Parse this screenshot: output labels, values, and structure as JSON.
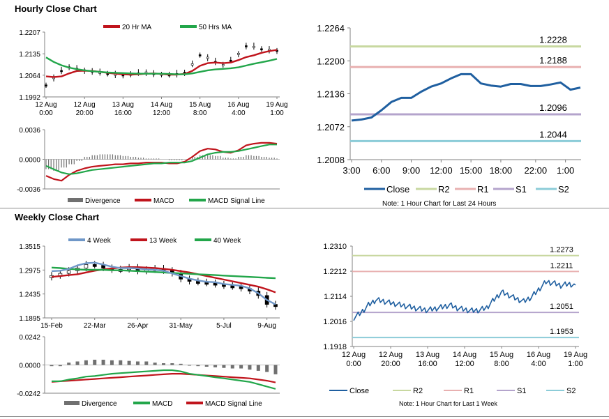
{
  "hourly_section": {
    "title": "Hourly Close Chart",
    "note": "Note: 1 Hour Chart for Last 24 Hours"
  },
  "weekly_section": {
    "title": "Weekly Close Chart",
    "note": "Note: 1 Hour Chart for Last 1 Week"
  },
  "colors": {
    "red": "#c0141c",
    "green": "#22a64a",
    "blue": "#1f5fa0",
    "blue_light": "#6f97c8",
    "r2": "#c8d8a0",
    "r1": "#e8b0b0",
    "s1": "#b4a4cc",
    "s2": "#8cccd8",
    "bar": "#707070"
  },
  "chart_data": [
    {
      "id": "hourly-price",
      "type": "line",
      "legend": [
        "20 Hr MA",
        "50 Hrs MA"
      ],
      "ylim": [
        1.1992,
        1.2207
      ],
      "yticks": [
        "1.2207",
        "1.2135",
        "1.2064",
        "1.1992"
      ],
      "xticks": [
        "12 Aug\n0:00",
        "12 Aug\n20:00",
        "13 Aug\n16:00",
        "14 Aug\n12:00",
        "15 Aug\n8:00",
        "16 Aug\n4:00",
        "19 Aug\n1:00"
      ],
      "x": [
        0,
        4,
        8,
        12,
        16,
        20,
        24,
        28,
        32,
        36,
        40,
        44,
        48,
        52,
        56,
        60,
        64,
        68,
        72,
        76,
        80,
        84,
        88,
        92,
        96,
        100,
        104,
        108,
        112,
        116,
        120
      ],
      "series": [
        {
          "name": "Close",
          "values": [
            1.203,
            1.2055,
            1.2078,
            1.209,
            1.2085,
            1.208,
            1.2076,
            1.2072,
            1.2068,
            1.2066,
            1.2064,
            1.2066,
            1.207,
            1.2073,
            1.2068,
            1.2066,
            1.2064,
            1.2068,
            1.2072,
            1.21,
            1.213,
            1.2122,
            1.2108,
            1.2098,
            1.2112,
            1.2135,
            1.216,
            1.2158,
            1.215,
            1.2148,
            1.2145
          ]
        },
        {
          "name": "20 Hr MA",
          "values": [
            1.206,
            1.2058,
            1.206,
            1.207,
            1.2078,
            1.2079,
            1.2078,
            1.2075,
            1.2072,
            1.2069,
            1.2067,
            1.2066,
            1.2067,
            1.2069,
            1.207,
            1.2068,
            1.2066,
            1.2066,
            1.2068,
            1.2078,
            1.2095,
            1.2104,
            1.2106,
            1.2104,
            1.2106,
            1.2114,
            1.2124,
            1.213,
            1.2138,
            1.2144,
            1.2148
          ]
        },
        {
          "name": "50 Hrs MA",
          "values": [
            1.2123,
            1.2108,
            1.2097,
            1.2089,
            1.2084,
            1.208,
            1.2077,
            1.2075,
            1.2073,
            1.2072,
            1.2071,
            1.207,
            1.2069,
            1.2069,
            1.2069,
            1.2069,
            1.2068,
            1.2067,
            1.2067,
            1.207,
            1.2075,
            1.208,
            1.2083,
            1.2085,
            1.2087,
            1.209,
            1.2096,
            1.2102,
            1.2107,
            1.2112,
            1.2118
          ]
        }
      ]
    },
    {
      "id": "hourly-macd",
      "type": "line",
      "legend": [
        "Divergence",
        "MACD",
        "MACD Signal Line"
      ],
      "ylim": [
        -0.0036,
        0.0036
      ],
      "yticks": [
        "0.0036",
        "0.0000",
        "-0.0036"
      ],
      "x": [
        0,
        4,
        8,
        12,
        16,
        20,
        24,
        28,
        32,
        36,
        40,
        44,
        48,
        52,
        56,
        60,
        64,
        68,
        72,
        76,
        80,
        84,
        88,
        92,
        96,
        100,
        104,
        108,
        112,
        116,
        120
      ],
      "series": [
        {
          "name": "Divergence",
          "values": [
            -0.0012,
            -0.0014,
            -0.001,
            -0.0006,
            -0.0002,
            0.0003,
            0.0005,
            0.0006,
            0.0006,
            0.0005,
            0.0004,
            0.0003,
            0.0002,
            0.0001,
            0.0001,
            0.0,
            -0.0001,
            -0.0001,
            0.0,
            0.0003,
            0.0005,
            0.0005,
            0.0004,
            0.0002,
            0.0001,
            0.0003,
            0.0005,
            0.0004,
            0.0003,
            0.0002,
            0.0001
          ]
        },
        {
          "name": "MACD",
          "values": [
            -0.002,
            -0.0024,
            -0.0026,
            -0.0019,
            -0.0014,
            -0.0011,
            -0.0009,
            -0.0008,
            -0.0007,
            -0.0006,
            -0.0006,
            -0.0005,
            -0.0005,
            -0.0004,
            -0.0004,
            -0.0004,
            -0.0005,
            -0.0005,
            -0.0003,
            0.0003,
            0.001,
            0.0013,
            0.0012,
            0.0009,
            0.0008,
            0.0011,
            0.0017,
            0.0019,
            0.002,
            0.002,
            0.0019
          ]
        },
        {
          "name": "MACD Signal Line",
          "values": [
            -0.0008,
            -0.0012,
            -0.0016,
            -0.0018,
            -0.0017,
            -0.0015,
            -0.0013,
            -0.0012,
            -0.0011,
            -0.001,
            -0.0009,
            -0.0008,
            -0.0007,
            -0.0006,
            -0.0005,
            -0.0005,
            -0.0004,
            -0.0004,
            -0.0004,
            -0.0002,
            0.0002,
            0.0006,
            0.0008,
            0.0009,
            0.0009,
            0.001,
            0.0012,
            0.0014,
            0.0016,
            0.0018,
            0.0018
          ]
        }
      ]
    },
    {
      "id": "hourly-pivots",
      "type": "line",
      "ylim": [
        1.2008,
        1.2264
      ],
      "yticks": [
        "1.2264",
        "1.2200",
        "1.2136",
        "1.2072",
        "1.2008"
      ],
      "xticks": [
        "3:00",
        "6:00",
        "9:00",
        "12:00",
        "15:00",
        "18:00",
        "22:00",
        "1:00"
      ],
      "legend": [
        "Close",
        "R2",
        "R1",
        "S1",
        "S2"
      ],
      "levels": {
        "R2": 1.2228,
        "R1": 1.2188,
        "S1": 1.2096,
        "S2": 1.2044
      },
      "level_labels": {
        "R2": "1.2228",
        "R1": "1.2188",
        "S1": "1.2096",
        "S2": "1.2044"
      },
      "x": [
        0,
        1,
        2,
        3,
        4,
        5,
        6,
        7,
        8,
        9,
        10,
        11,
        12,
        13,
        14,
        15,
        16,
        17,
        18,
        19,
        20,
        21,
        22,
        23
      ],
      "series": [
        {
          "name": "Close",
          "values": [
            1.2084,
            1.2086,
            1.209,
            1.2104,
            1.212,
            1.2128,
            1.2128,
            1.214,
            1.215,
            1.2156,
            1.2166,
            1.2174,
            1.2174,
            1.2156,
            1.2152,
            1.215,
            1.2155,
            1.2155,
            1.2151,
            1.2151,
            1.2154,
            1.2158,
            1.2144,
            1.2148
          ]
        }
      ]
    },
    {
      "id": "weekly-price",
      "type": "line",
      "legend": [
        "4 Week",
        "13 Week",
        "40 Week"
      ],
      "ylim": [
        1.1895,
        1.3515
      ],
      "yticks": [
        "1.3515",
        "1.2975",
        "1.2435",
        "1.1895"
      ],
      "xticks": [
        "15-Feb",
        "22-Mar",
        "26-Apr",
        "31-May",
        "5-Jul",
        "9-Aug"
      ],
      "x": [
        0,
        1,
        2,
        3,
        4,
        5,
        6,
        7,
        8,
        9,
        10,
        11,
        12,
        13,
        14,
        15,
        16,
        17,
        18,
        19,
        20,
        21,
        22,
        23,
        24,
        25,
        26
      ],
      "series": [
        {
          "name": "Close",
          "values": [
            1.285,
            1.29,
            1.296,
            1.302,
            1.31,
            1.308,
            1.302,
            1.298,
            1.299,
            1.303,
            1.295,
            1.298,
            1.301,
            1.296,
            1.29,
            1.277,
            1.272,
            1.27,
            1.268,
            1.265,
            1.262,
            1.26,
            1.256,
            1.25,
            1.24,
            1.22,
            1.215
          ]
        },
        {
          "name": "4 Week",
          "values": [
            1.295,
            1.296,
            1.3,
            1.308,
            1.313,
            1.314,
            1.31,
            1.305,
            1.302,
            1.302,
            1.301,
            1.299,
            1.298,
            1.296,
            1.29,
            1.284,
            1.278,
            1.274,
            1.271,
            1.27,
            1.266,
            1.264,
            1.262,
            1.256,
            1.245,
            1.23,
            1.22
          ]
        },
        {
          "name": "13 Week",
          "values": [
            1.282,
            1.284,
            1.286,
            1.288,
            1.292,
            1.296,
            1.299,
            1.301,
            1.303,
            1.304,
            1.304,
            1.303,
            1.302,
            1.3,
            1.298,
            1.295,
            1.292,
            1.288,
            1.284,
            1.28,
            1.276,
            1.272,
            1.268,
            1.264,
            1.26,
            1.254,
            1.247
          ]
        },
        {
          "name": "40 Week",
          "values": [
            1.303,
            1.302,
            1.3,
            1.299,
            1.298,
            1.298,
            1.298,
            1.297,
            1.297,
            1.296,
            1.295,
            1.294,
            1.293,
            1.292,
            1.291,
            1.29,
            1.289,
            1.288,
            1.287,
            1.286,
            1.285,
            1.284,
            1.283,
            1.282,
            1.281,
            1.28,
            1.279
          ]
        }
      ]
    },
    {
      "id": "weekly-macd",
      "type": "line",
      "legend": [
        "Divergence",
        "MACD",
        "MACD Signal Line"
      ],
      "ylim": [
        -0.0242,
        0.0242
      ],
      "yticks": [
        "0.0242",
        "0.0000",
        "-0.0242"
      ],
      "x": [
        0,
        1,
        2,
        3,
        4,
        5,
        6,
        7,
        8,
        9,
        10,
        11,
        12,
        13,
        14,
        15,
        16,
        17,
        18,
        19,
        20,
        21,
        22,
        23,
        24,
        25,
        26
      ],
      "series": [
        {
          "name": "Divergence",
          "values": [
            -0.001,
            -0.001,
            0.002,
            0.003,
            0.004,
            0.0045,
            0.0045,
            0.004,
            0.004,
            0.0035,
            0.003,
            0.003,
            0.002,
            0.0015,
            0.0015,
            0.001,
            -0.0005,
            -0.001,
            -0.0015,
            -0.002,
            -0.0025,
            -0.003,
            -0.003,
            -0.004,
            -0.005,
            -0.006,
            -0.008
          ]
        },
        {
          "name": "MACD",
          "values": [
            -0.014,
            -0.014,
            -0.0125,
            -0.0115,
            -0.01,
            -0.0095,
            -0.0085,
            -0.0075,
            -0.007,
            -0.0065,
            -0.006,
            -0.0055,
            -0.005,
            -0.0045,
            -0.0045,
            -0.0055,
            -0.0075,
            -0.0085,
            -0.0095,
            -0.0105,
            -0.0115,
            -0.0125,
            -0.0135,
            -0.0145,
            -0.0165,
            -0.0185,
            -0.0205
          ]
        },
        {
          "name": "MACD Signal Line",
          "values": [
            -0.0145,
            -0.014,
            -0.0135,
            -0.013,
            -0.0125,
            -0.012,
            -0.0115,
            -0.011,
            -0.0105,
            -0.01,
            -0.0095,
            -0.009,
            -0.0085,
            -0.008,
            -0.0075,
            -0.0075,
            -0.008,
            -0.0085,
            -0.009,
            -0.0095,
            -0.01,
            -0.0105,
            -0.011,
            -0.0115,
            -0.0125,
            -0.0135,
            -0.015
          ]
        }
      ]
    },
    {
      "id": "weekly-pivots",
      "type": "line",
      "ylim": [
        1.1918,
        1.231
      ],
      "yticks": [
        "1.2310",
        "1.2212",
        "1.2114",
        "1.2016",
        "1.1918"
      ],
      "xticks": [
        "12 Aug\n0:00",
        "12 Aug\n20:00",
        "13 Aug\n16:00",
        "14 Aug\n12:00",
        "15 Aug\n8:00",
        "16 Aug\n4:00",
        "19 Aug\n1:00"
      ],
      "legend": [
        "Close",
        "R2",
        "R1",
        "S1",
        "S2"
      ],
      "levels": {
        "R2": 1.2273,
        "R1": 1.2211,
        "S1": 1.2051,
        "S2": 1.1953
      },
      "level_labels": {
        "R2": "1.2273",
        "R1": "1.2211",
        "S1": "1.2051",
        "S2": "1.1953"
      },
      "x": [
        0,
        4,
        8,
        12,
        16,
        20,
        24,
        28,
        32,
        36,
        40,
        44,
        48,
        52,
        56,
        60,
        64,
        68,
        72,
        76,
        80,
        84,
        88,
        92,
        96,
        100,
        104,
        108,
        112,
        116,
        120
      ],
      "series": [
        {
          "name": "Close",
          "values": [
            1.203,
            1.205,
            1.208,
            1.21,
            1.2095,
            1.2088,
            1.2082,
            1.2076,
            1.207,
            1.2064,
            1.206,
            1.2066,
            1.2072,
            1.208,
            1.2068,
            1.2062,
            1.2058,
            1.206,
            1.207,
            1.2102,
            1.213,
            1.2118,
            1.2104,
            1.2094,
            1.211,
            1.214,
            1.217,
            1.2166,
            1.2156,
            1.2162,
            1.2158
          ]
        }
      ]
    }
  ]
}
